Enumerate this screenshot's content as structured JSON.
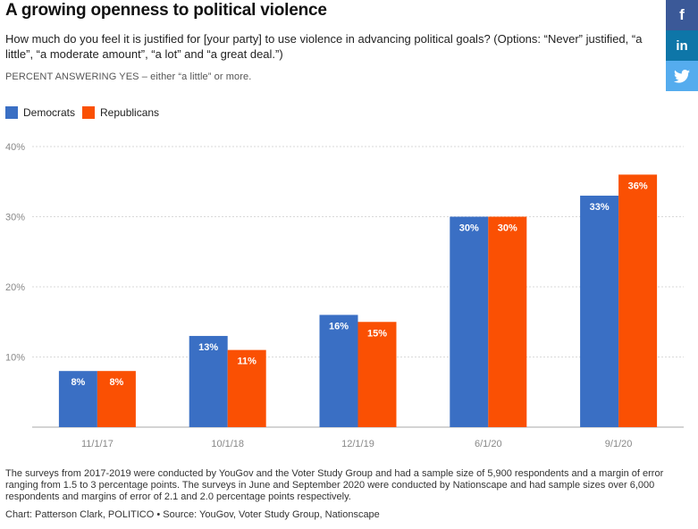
{
  "header": {
    "title": "A growing openness to political violence",
    "subtitle": "How much do you feel it is justified for [your party] to use violence in advancing political goals? (Options: “Never” justified, “a little”, “a moderate amount”, “a lot” and “a great deal.”)",
    "note": "PERCENT ANSWERING YES – either “a little” or more."
  },
  "social": {
    "facebook_icon": "f",
    "linkedin_icon": "in",
    "twitter_icon": "twitter-bird"
  },
  "colors": {
    "democrats": "#3a6fc4",
    "republicans": "#fa5003",
    "grid": "#d9d9d9",
    "axis_text": "#888888"
  },
  "chart_data": {
    "type": "bar",
    "categories": [
      "11/1/17",
      "10/1/18",
      "12/1/19",
      "6/1/20",
      "9/1/20"
    ],
    "series": [
      {
        "name": "Democrats",
        "values": [
          8,
          13,
          16,
          30,
          33
        ]
      },
      {
        "name": "Republicans",
        "values": [
          8,
          11,
          15,
          30,
          36
        ]
      }
    ],
    "ylim": [
      0,
      40
    ],
    "yticks": [
      10,
      20,
      30,
      40
    ],
    "ytick_labels": [
      "10%",
      "20%",
      "30%",
      "40%"
    ],
    "value_suffix": "%",
    "grid": true,
    "legend_position": "top-left"
  },
  "footer": {
    "note": "The surveys from 2017-2019 were conducted by YouGov and the Voter Study Group and had a sample size of 5,900 respondents and a margin of error ranging from 1.5 to 3 percentage points. The surveys in June and September 2020 were conducted by Nationscape and had sample sizes over 6,000 respondents and margins of error of 2.1 and 2.0 percentage points respectively.",
    "credit": "Chart: Patterson Clark, POLITICO • Source: YouGov, Voter Study Group, Nationscape"
  }
}
